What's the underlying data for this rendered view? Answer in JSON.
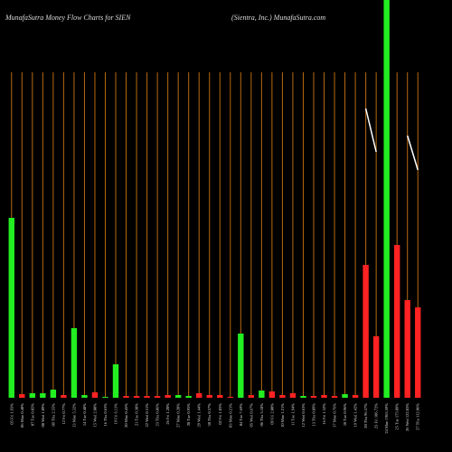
{
  "chart_data": {
    "type": "bar",
    "title": "MunafaSutra  Money Flow  Charts for SIEN",
    "subtitle": "(Sientra,  Inc.) MunafaSutra.com",
    "categories": [
      "05 Fri 1.93%",
      "06 Mon 0.40%",
      "07 Tue 0.85%",
      "08 Wed 1.09%",
      "09 Thu 2.55%",
      "12 Fri 0.77%",
      "13 Mon 5.32%",
      "14 Tue 0.48%",
      "15 Wed 2.08%",
      "16 Thu 0.63%",
      "19 Fri 6.11%",
      "20 Mon 0.45%",
      "21 Tue 0.38%",
      "22 Wed 0.31%",
      "23 Thu 0.86%",
      "26 Fri 1.20%",
      "27 Mon 0.28%",
      "28 Tue 0.95%",
      "29 Wed 1.44%",
      "30 Thu 0.57%",
      "02 Fri 1.03%",
      "03 Mon 0.21%",
      "04 Tue 7.69%",
      "05 Wed 0.67%",
      "06 Thu 3.18%",
      "09 Fri 2.80%",
      "10 Mon 1.21%",
      "11 Tue 1.94%",
      "12 Wed 0.63%",
      "13 Thu 0.89%",
      "16 Fri 1.32%",
      "17 Mon 0.76%",
      "18 Tue 0.96%",
      "19 Wed 1.42%",
      "20 Thu 96.57%",
      "23 Fri 106.72%",
      "24 Mon 1963.59%",
      "25 Tue 175.09%",
      "26 Wed 122.83%",
      "27 Thu 112.06%"
    ],
    "values": [
      199,
      4,
      5,
      5,
      9,
      3,
      77,
      3,
      6,
      1,
      37,
      2,
      2,
      2,
      2,
      3,
      3,
      2,
      5,
      3,
      3,
      1,
      71,
      3,
      8,
      7,
      3,
      5,
      2,
      2,
      3,
      2,
      4,
      3,
      147,
      68,
      440,
      169,
      108,
      100
    ],
    "colors": [
      "#22ee22",
      "#ff2222",
      "#22ee22",
      "#22ee22",
      "#22ee22",
      "#ff2222",
      "#22ee22",
      "#22ee22",
      "#ff2222",
      "#22ee22",
      "#22ee22",
      "#ff2222",
      "#ff2222",
      "#ff2222",
      "#ff2222",
      "#ff2222",
      "#22ee22",
      "#22ee22",
      "#ff2222",
      "#ff2222",
      "#ff2222",
      "#ff2222",
      "#22ee22",
      "#ff2222",
      "#22ee22",
      "#ff2222",
      "#ff2222",
      "#ff2222",
      "#22ee22",
      "#ff2222",
      "#ff2222",
      "#ff2222",
      "#22ee22",
      "#ff2222",
      "#ff2222",
      "#ff2222",
      "#22ee22",
      "#ff2222",
      "#ff2222",
      "#ff2222"
    ],
    "line_values": [
      null,
      null,
      null,
      null,
      null,
      null,
      null,
      null,
      null,
      null,
      null,
      null,
      null,
      null,
      null,
      null,
      null,
      null,
      null,
      null,
      null,
      null,
      null,
      null,
      null,
      null,
      null,
      null,
      null,
      null,
      null,
      null,
      null,
      null,
      320,
      272,
      null,
      null,
      290,
      252
    ],
    "line_color": "#ffffff",
    "grid_color": "#b86a10",
    "ylim": [
      0,
      440
    ]
  }
}
